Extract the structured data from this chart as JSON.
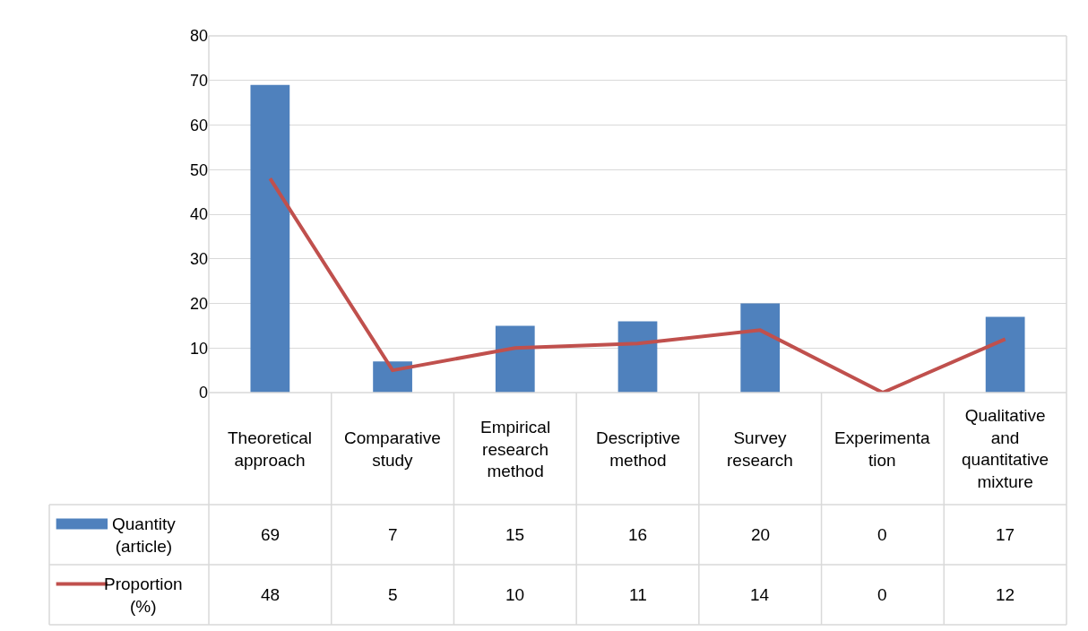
{
  "chart_data": {
    "type": "bar",
    "categories": [
      "Theoretical approach",
      "Comparative study",
      "Empirical research method",
      "Descriptive method",
      "Survey research",
      "Experimentation",
      "Qualitative and quantitative mixture"
    ],
    "series": [
      {
        "name": "Quantity (article)",
        "color": "#4f81bd",
        "values": [
          69,
          7,
          15,
          16,
          20,
          0,
          17
        ]
      },
      {
        "name": "Proportion (%)",
        "type": "line",
        "color": "#c0504d",
        "values": [
          48,
          5,
          10,
          11,
          14,
          0,
          12
        ]
      }
    ],
    "ylim": [
      0,
      80
    ],
    "yticks": [
      0,
      10,
      20,
      30,
      40,
      50,
      60,
      70,
      80
    ],
    "grid": "y",
    "data_labels": true,
    "legend": "bottom left",
    "marker": "none",
    "line_style": "solid"
  }
}
